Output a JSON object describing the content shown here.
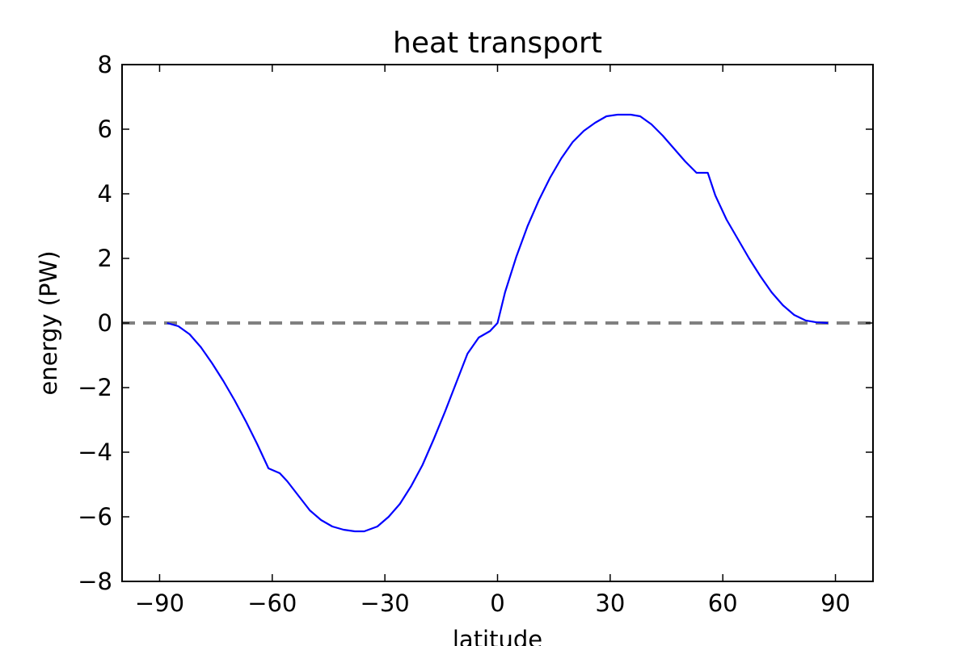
{
  "chart_data": {
    "type": "line",
    "title": "heat transport",
    "xlabel": "latitude",
    "ylabel": "energy (PW)",
    "xlim": [
      -100,
      100
    ],
    "ylim": [
      -8,
      8
    ],
    "x_ticks": [
      -90,
      -60,
      -30,
      0,
      30,
      60,
      90
    ],
    "y_ticks": [
      -8,
      -6,
      -4,
      -2,
      0,
      2,
      4,
      6,
      8
    ],
    "x_tick_labels": [
      "−90",
      "−60",
      "−30",
      "0",
      "30",
      "60",
      "90"
    ],
    "y_tick_labels": [
      "−8",
      "−6",
      "−4",
      "−2",
      "0",
      "2",
      "4",
      "6",
      "8"
    ],
    "grid": false,
    "series": [
      {
        "color": "#0000ff",
        "style": "solid",
        "x": [
          -88,
          -85,
          -82,
          -79,
          -76,
          -73,
          -70,
          -67,
          -64,
          -61,
          -58,
          -56,
          -53,
          -50,
          -47,
          -44,
          -41,
          -38,
          -35.5,
          -32,
          -29,
          -26,
          -23,
          -20,
          -17,
          -14,
          -11,
          -8,
          -5,
          -2,
          0,
          2,
          5,
          8,
          11,
          14,
          17,
          20,
          23,
          26,
          29,
          32,
          35.5,
          38,
          41,
          44,
          47,
          50,
          53,
          56,
          58,
          61,
          64,
          67,
          70,
          73,
          76,
          79,
          82,
          85,
          88
        ],
        "y": [
          0.0,
          -0.1,
          -0.35,
          -0.75,
          -1.25,
          -1.8,
          -2.4,
          -3.05,
          -3.75,
          -4.5,
          -4.65,
          -4.9,
          -5.35,
          -5.8,
          -6.1,
          -6.3,
          -6.4,
          -6.45,
          -6.45,
          -6.3,
          -6.0,
          -5.6,
          -5.05,
          -4.4,
          -3.6,
          -2.75,
          -1.85,
          -0.95,
          -0.45,
          -0.25,
          0.0,
          0.95,
          2.05,
          3.0,
          3.8,
          4.5,
          5.1,
          5.6,
          5.95,
          6.2,
          6.4,
          6.45,
          6.45,
          6.4,
          6.15,
          5.8,
          5.4,
          5.0,
          4.65,
          4.65,
          3.95,
          3.2,
          2.6,
          2.0,
          1.45,
          0.95,
          0.55,
          0.25,
          0.08,
          0.02,
          0.0
        ]
      },
      {
        "color": "#808080",
        "style": "dashed",
        "x": [
          -100,
          100
        ],
        "y": [
          0,
          0
        ]
      }
    ]
  }
}
